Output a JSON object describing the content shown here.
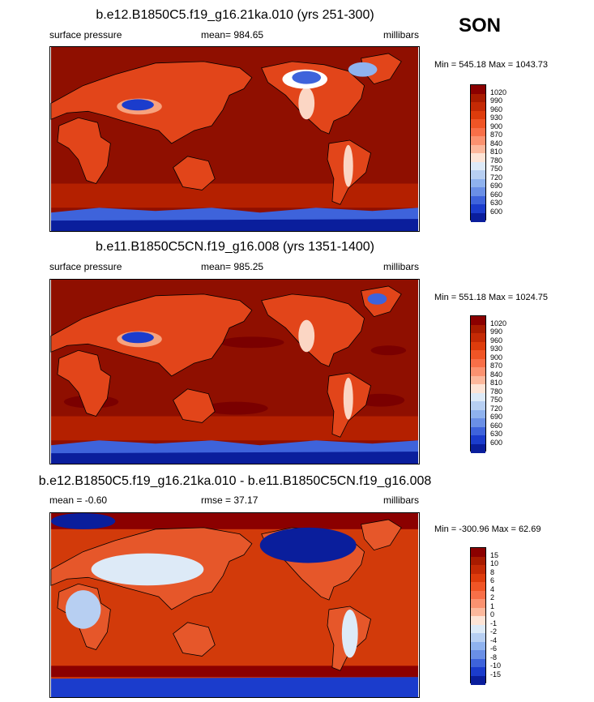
{
  "season": "SON",
  "panels": [
    {
      "title": "b.e12.B1850C5.f19_g16.21ka.010 (yrs 251-300)",
      "left_label": "surface pressure",
      "center_label": "mean= 984.65",
      "right_label": "millibars",
      "minmax": "Min = 545.18 Max = 1043.73",
      "type": "abs"
    },
    {
      "title": "b.e11.B1850C5CN.f19_g16.008 (yrs 1351-1400)",
      "left_label": "surface pressure",
      "center_label": "mean= 985.25",
      "right_label": "millibars",
      "minmax": "Min = 551.18 Max = 1024.75",
      "type": "abs"
    },
    {
      "title": "b.e12.B1850C5.f19_g16.21ka.010 - b.e11.B1850C5CN.f19_g16.008",
      "left_label": "mean =  -0.60",
      "center_label": "rmse =  37.17",
      "right_label": "millibars",
      "minmax": "Min = -300.96 Max =  62.69",
      "type": "diff"
    }
  ],
  "legend_abs": {
    "labels": [
      "1020",
      "990",
      "960",
      "930",
      "900",
      "870",
      "840",
      "810",
      "780",
      "750",
      "720",
      "690",
      "660",
      "630",
      "600"
    ],
    "colors": [
      "#8b0000",
      "#a81b00",
      "#c42a05",
      "#de3c0c",
      "#f05526",
      "#f86f48",
      "#fb9270",
      "#fcb89c",
      "#fde4d6",
      "#ddeaf7",
      "#b7cff2",
      "#8fb2ee",
      "#6a8fe6",
      "#3e63db",
      "#1b3ccc",
      "#0a1e9c"
    ]
  },
  "legend_diff": {
    "labels": [
      "15",
      "10",
      "8",
      "6",
      "4",
      "2",
      "1",
      "0",
      "-1",
      "-2",
      "-4",
      "-6",
      "-8",
      "-10",
      "-15"
    ],
    "colors": [
      "#8b0000",
      "#a81b00",
      "#c42a05",
      "#de3c0c",
      "#f05526",
      "#f86f48",
      "#fb9270",
      "#fcb89c",
      "#fde4d6",
      "#ddeaf7",
      "#b7cff2",
      "#8fb2ee",
      "#6a8fe6",
      "#3e63db",
      "#1b3ccc",
      "#0a1e9c"
    ]
  }
}
